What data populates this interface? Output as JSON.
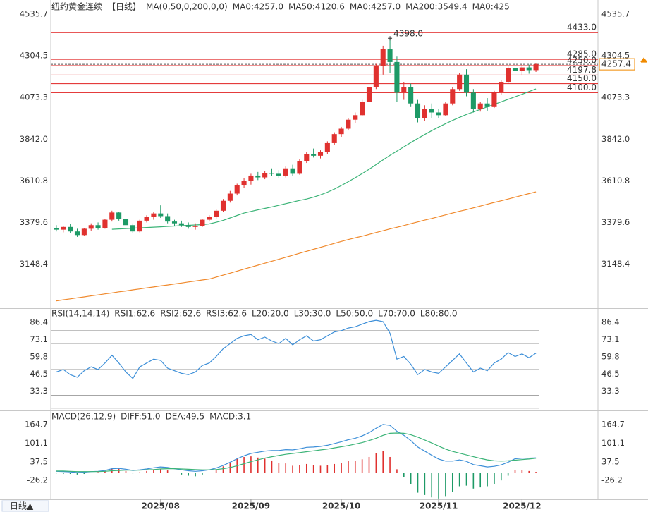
{
  "chart_data": [
    {
      "type": "candlestick",
      "title": "纽约黄金连续",
      "period": "【日线】",
      "title_color": "#333333",
      "period_color": "#e2442f",
      "legend": [
        {
          "text": "MA(0,50,0,200,0,0)",
          "color": "#333333"
        },
        {
          "text": "MA0:4257.0",
          "color": "#3d8fd8"
        },
        {
          "text": "MA50:4120.6",
          "color": "#3cb478"
        },
        {
          "text": "MA0:4257.0",
          "color": "#3d8fd8"
        },
        {
          "text": "MA200:3549.4",
          "color": "#f0892c"
        },
        {
          "text": "MA0:425",
          "color": "#c77dd8"
        }
      ],
      "ylim": [
        2904.4,
        4613.9
      ],
      "yticks": [
        4535.7,
        4304.5,
        4073.3,
        {
          "value": 3842,
          "label": "3842.0"
        },
        3610.8,
        3379.6,
        3148.4
      ],
      "up_color": "#e0312f",
      "down_color": "#1d9a66",
      "open": [
        3350,
        3340,
        3355,
        3330,
        3310,
        3345,
        3365,
        3350,
        3395,
        3435,
        3400,
        3365,
        3330,
        3390,
        3410,
        3430,
        3415,
        3385,
        3375,
        3365,
        3355,
        3360,
        3395,
        3410,
        3445,
        3500,
        3540,
        3585,
        3610,
        3640,
        3630,
        3655,
        3650,
        3640,
        3680,
        3650,
        3720,
        3760,
        3750,
        3770,
        3820,
        3870,
        3900,
        3950,
        3975,
        4050,
        4130,
        4250,
        4340,
        4270,
        4100,
        4130,
        4040,
        3960,
        4010,
        3990,
        3975,
        4040,
        4120,
        4200,
        4100,
        4010,
        4040,
        4020,
        4100,
        4160,
        4235,
        4220,
        4240,
        4225
      ],
      "high": [
        3365,
        3360,
        3370,
        3345,
        3350,
        3375,
        3380,
        3400,
        3445,
        3440,
        3405,
        3375,
        3395,
        3420,
        3440,
        3475,
        3430,
        3395,
        3390,
        3380,
        3375,
        3400,
        3420,
        3455,
        3510,
        3555,
        3595,
        3625,
        3650,
        3660,
        3665,
        3680,
        3670,
        3690,
        3700,
        3730,
        3770,
        3790,
        3780,
        3830,
        3880,
        3910,
        3960,
        3990,
        4060,
        4140,
        4260,
        4360,
        4398,
        4300,
        4160,
        4150,
        4060,
        4030,
        4040,
        4010,
        4050,
        4130,
        4210,
        4230,
        4120,
        4050,
        4070,
        4110,
        4170,
        4245,
        4265,
        4260,
        4255,
        4265
      ],
      "low": [
        3330,
        3325,
        3320,
        3300,
        3305,
        3335,
        3340,
        3345,
        3385,
        3390,
        3355,
        3320,
        3325,
        3380,
        3395,
        3405,
        3375,
        3360,
        3355,
        3345,
        3340,
        3355,
        3385,
        3400,
        3440,
        3490,
        3530,
        3570,
        3590,
        3615,
        3620,
        3640,
        3625,
        3630,
        3640,
        3645,
        3710,
        3740,
        3735,
        3760,
        3810,
        3855,
        3890,
        3930,
        3970,
        4040,
        4120,
        4200,
        4210,
        4050,
        4060,
        4020,
        3935,
        3945,
        3960,
        3960,
        3970,
        4030,
        4110,
        4080,
        3990,
        3995,
        4000,
        4015,
        4090,
        4150,
        4200,
        4195,
        4205,
        4215
      ],
      "close": [
        3340,
        3355,
        3330,
        3310,
        3345,
        3365,
        3350,
        3395,
        3435,
        3400,
        3365,
        3330,
        3390,
        3410,
        3430,
        3415,
        3385,
        3375,
        3365,
        3355,
        3360,
        3395,
        3410,
        3445,
        3500,
        3540,
        3585,
        3610,
        3640,
        3630,
        3655,
        3650,
        3640,
        3680,
        3650,
        3720,
        3760,
        3750,
        3770,
        3820,
        3870,
        3900,
        3950,
        3975,
        4050,
        4130,
        4250,
        4340,
        4270,
        4100,
        4130,
        4040,
        3960,
        4010,
        3990,
        3975,
        4040,
        4120,
        4200,
        4100,
        4010,
        4040,
        4020,
        4100,
        4160,
        4235,
        4220,
        4240,
        4225,
        4257.4
      ],
      "series": [
        {
          "color": "#3cb478",
          "values": [
            null,
            null,
            null,
            null,
            null,
            null,
            null,
            null,
            3342,
            3344,
            3346,
            3348,
            3350,
            3352,
            3354,
            3356,
            3358,
            3360,
            3362,
            3364,
            3366,
            3368,
            3372,
            3381,
            3392,
            3405,
            3419,
            3432,
            3441,
            3450,
            3458,
            3466,
            3475,
            3484,
            3493,
            3502,
            3510,
            3520,
            3533,
            3548,
            3565,
            3585,
            3606,
            3628,
            3651,
            3675,
            3701,
            3727,
            3752,
            3776,
            3800,
            3823,
            3846,
            3868,
            3889,
            3909,
            3928,
            3946,
            3963,
            3979,
            3993,
            4007,
            4021,
            4035,
            4049,
            4063,
            4077,
            4091,
            4106,
            4120.6
          ]
        },
        {
          "color": "#f0892c",
          "values": [
            2945,
            2951,
            2956,
            2962,
            2967,
            2973,
            2978,
            2984,
            2989,
            2995,
            3000,
            3006,
            3011,
            3017,
            3022,
            3028,
            3033,
            3039,
            3044,
            3050,
            3055,
            3061,
            3066,
            3077,
            3088,
            3099,
            3110,
            3121,
            3132,
            3143,
            3154,
            3165,
            3176,
            3187,
            3198,
            3209,
            3220,
            3231,
            3242,
            3253,
            3264,
            3275,
            3285,
            3295,
            3304,
            3314,
            3324,
            3334,
            3344,
            3353,
            3363,
            3373,
            3383,
            3393,
            3402,
            3412,
            3422,
            3432,
            3442,
            3451,
            3461,
            3471,
            3481,
            3491,
            3500,
            3510,
            3520,
            3530,
            3540,
            3549.4
          ]
        }
      ],
      "levels": [
        {
          "value": 4433,
          "label": "4433.0"
        },
        {
          "value": 4285,
          "label": "4285.0"
        },
        {
          "value": 4250,
          "label": "4250.0"
        },
        {
          "value": 4197.8,
          "label": "4197.8"
        },
        {
          "value": 4150,
          "label": "4150.0"
        },
        {
          "value": 4100,
          "label": "4100.0"
        }
      ],
      "level_color": "#e02020",
      "last_price": {
        "value": 4257.4,
        "label": "4257.4"
      },
      "last_price_color": "#f08a00",
      "max_label": "4398.0"
    },
    {
      "type": "line",
      "title": "RSI(14,14,14)",
      "legend": [
        {
          "text": "RSI1:62.6",
          "color": "#3d8fd8"
        },
        {
          "text": "RSI2:62.6",
          "color": "#29a8c8"
        },
        {
          "text": "RSI3:62.6",
          "color": "#3d8fd8"
        },
        {
          "text": "L20:20.0",
          "color": "#aaaaaa"
        },
        {
          "text": "L30:30.0",
          "color": "#aaaaaa"
        },
        {
          "text": "L50:50.0",
          "color": "#aaaaaa"
        },
        {
          "text": "L70:70.0",
          "color": "#aaaaaa"
        },
        {
          "text": "L80:80.0",
          "color": "#aaaaaa"
        }
      ],
      "ylim": [
        19.4,
        95.7
      ],
      "yticks": [
        86.4,
        73.1,
        59.8,
        46.5,
        33.3
      ],
      "levels": [
        80,
        70,
        50,
        30,
        20
      ],
      "level_color": "#9a9a9a",
      "series": [
        {
          "color": "#3d8fd8",
          "values": [
            48,
            50,
            46,
            44,
            49,
            52,
            50,
            55,
            61,
            55,
            48,
            43,
            52,
            55,
            58,
            57,
            51,
            49,
            47,
            46,
            48,
            53,
            55,
            60,
            66,
            70,
            74,
            76,
            77,
            73,
            75,
            72,
            70,
            74,
            69,
            73,
            76,
            72,
            73,
            76,
            79,
            80,
            82,
            83,
            85,
            87,
            88,
            87,
            78,
            58,
            60,
            54,
            46,
            50,
            48,
            47,
            52,
            57,
            62,
            55,
            48,
            51,
            49,
            55,
            58,
            63,
            60,
            62,
            59,
            62.6
          ]
        }
      ]
    },
    {
      "type": "macd",
      "title": "MACD(26,12,9)",
      "legend": [
        {
          "text": "DIFF:51.0",
          "color": "#3d8fd8"
        },
        {
          "text": "DEA:49.5",
          "color": "#3cb478"
        },
        {
          "text": "MACD:3.1",
          "color": "#3d8fd8"
        }
      ],
      "ylim": [
        -90.7,
        205.8
      ],
      "yticks": [
        164.7,
        101.1,
        37.5,
        -26.2
      ],
      "series": [
        {
          "color": "#3d8fd8",
          "values": [
            5,
            4,
            3,
            1,
            2,
            4,
            5,
            8,
            14,
            15,
            12,
            8,
            10,
            13,
            17,
            20,
            18,
            14,
            10,
            7,
            5,
            7,
            10,
            16,
            25,
            36,
            48,
            58,
            66,
            70,
            74,
            76,
            76,
            79,
            78,
            82,
            87,
            88,
            90,
            94,
            100,
            106,
            113,
            118,
            126,
            137,
            152,
            165,
            162,
            142,
            128,
            110,
            88,
            74,
            60,
            47,
            40,
            40,
            44,
            39,
            28,
            24,
            20,
            22,
            27,
            36,
            48,
            50,
            50,
            51.0
          ]
        },
        {
          "color": "#3cb478",
          "values": [
            6,
            6,
            5,
            4,
            4,
            4,
            4,
            5,
            7,
            8,
            9,
            9,
            9,
            10,
            11,
            13,
            14,
            14,
            13,
            12,
            11,
            10,
            10,
            11,
            14,
            18,
            24,
            31,
            38,
            44,
            50,
            55,
            59,
            63,
            66,
            69,
            72,
            75,
            78,
            81,
            85,
            89,
            93,
            98,
            103,
            110,
            118,
            128,
            135,
            136,
            135,
            130,
            122,
            112,
            102,
            91,
            81,
            73,
            67,
            61,
            55,
            49,
            44,
            41,
            40,
            41,
            43,
            45,
            47,
            49.5
          ]
        }
      ],
      "histogram": {
        "up_color": "#e0312f",
        "down_color": "#1d9a66",
        "values": [
          -2,
          -4,
          -4,
          -6,
          -4,
          0,
          2,
          6,
          14,
          14,
          6,
          -2,
          2,
          6,
          12,
          14,
          8,
          0,
          -6,
          -10,
          -12,
          -6,
          0,
          10,
          22,
          36,
          48,
          54,
          56,
          52,
          48,
          42,
          34,
          32,
          24,
          26,
          30,
          26,
          24,
          26,
          30,
          34,
          40,
          40,
          46,
          54,
          68,
          74,
          54,
          12,
          -14,
          -40,
          -68,
          -76,
          -84,
          -88,
          -82,
          -66,
          -46,
          -44,
          -54,
          -50,
          -46,
          -38,
          -26,
          -10,
          10,
          10,
          6,
          3.1
        ]
      },
      "categories": [
        null,
        null,
        null,
        null,
        null,
        null,
        null,
        null,
        null,
        null,
        null,
        null,
        null,
        null,
        null,
        "2025/08",
        null,
        null,
        null,
        null,
        null,
        null,
        null,
        null,
        null,
        null,
        null,
        null,
        "2025/09",
        null,
        null,
        null,
        null,
        null,
        null,
        null,
        null,
        null,
        null,
        null,
        null,
        "2025/10",
        null,
        null,
        null,
        null,
        null,
        null,
        null,
        null,
        null,
        null,
        null,
        null,
        null,
        "2025/11",
        null,
        null,
        null,
        null,
        null,
        null,
        null,
        null,
        null,
        null,
        null,
        "2025/12",
        null,
        null
      ],
      "period_button": "日线▲",
      "period_button_color": "#2b6cc4"
    }
  ]
}
